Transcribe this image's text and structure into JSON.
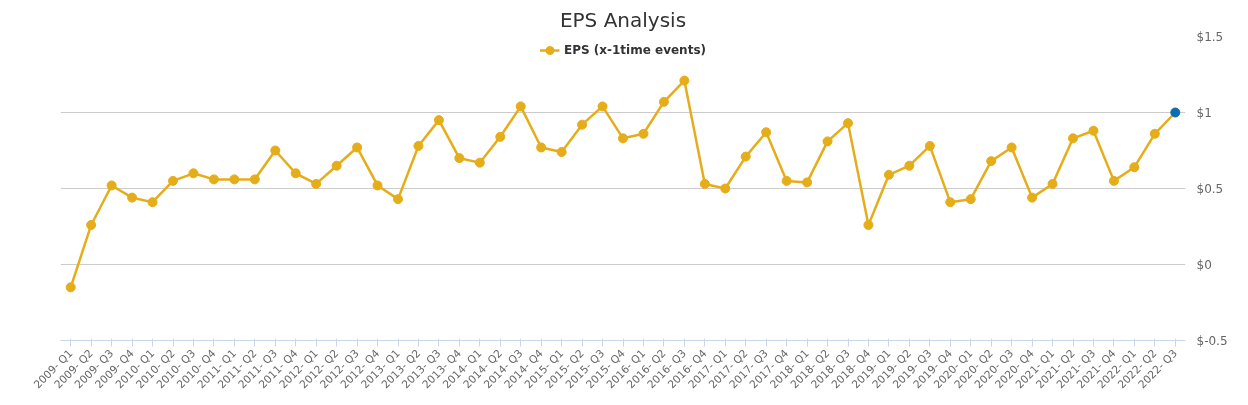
{
  "chart_data": {
    "type": "line",
    "title": "EPS Analysis",
    "categories": [
      "2009- Q1",
      "2009- Q2",
      "2009- Q3",
      "2009- Q4",
      "2010- Q1",
      "2010- Q2",
      "2010- Q3",
      "2010- Q4",
      "2011- Q1",
      "2011- Q2",
      "2011- Q3",
      "2011- Q4",
      "2012- Q1",
      "2012- Q2",
      "2012- Q3",
      "2012- Q4",
      "2013- Q1",
      "2013- Q2",
      "2013- Q3",
      "2013- Q4",
      "2014- Q1",
      "2014- Q2",
      "2014- Q3",
      "2014- Q4",
      "2015- Q1",
      "2015- Q2",
      "2015- Q3",
      "2015- Q4",
      "2016- Q1",
      "2016- Q2",
      "2016- Q3",
      "2016- Q4",
      "2017- Q1",
      "2017- Q2",
      "2017- Q3",
      "2017- Q4",
      "2018- Q1",
      "2018- Q2",
      "2018- Q3",
      "2018- Q4",
      "2019- Q1",
      "2019- Q2",
      "2019- Q3",
      "2019- Q4",
      "2020- Q1",
      "2020- Q2",
      "2020- Q3",
      "2020- Q4",
      "2021- Q1",
      "2021- Q2",
      "2021- Q3",
      "2021- Q4",
      "2022- Q1",
      "2022- Q2",
      "2022- Q3"
    ],
    "series": [
      {
        "name": "EPS (x-1time events)",
        "color": "#e6ad1a",
        "colors": [
          "#e6ad1a",
          "#e6ad1a",
          "#e6ad1a",
          "#e6ad1a",
          "#e6ad1a",
          "#e6ad1a",
          "#e6ad1a",
          "#e6ad1a",
          "#e6ad1a",
          "#e6ad1a",
          "#e6ad1a",
          "#e6ad1a",
          "#e6ad1a",
          "#e6ad1a",
          "#e6ad1a",
          "#e6ad1a",
          "#e6ad1a",
          "#e6ad1a",
          "#e6ad1a",
          "#e6ad1a",
          "#e6ad1a",
          "#e6ad1a",
          "#e6ad1a",
          "#e6ad1a",
          "#e6ad1a",
          "#e6ad1a",
          "#e6ad1a",
          "#e6ad1a",
          "#e6ad1a",
          "#e6ad1a",
          "#e6ad1a",
          "#e6ad1a",
          "#e6ad1a",
          "#e6ad1a",
          "#e6ad1a",
          "#e6ad1a",
          "#e6ad1a",
          "#e6ad1a",
          "#e6ad1a",
          "#e6ad1a",
          "#e6ad1a",
          "#e6ad1a",
          "#e6ad1a",
          "#e6ad1a",
          "#e6ad1a",
          "#e6ad1a",
          "#e6ad1a",
          "#e6ad1a",
          "#e6ad1a",
          "#e6ad1a",
          "#e6ad1a",
          "#e6ad1a",
          "#e6ad1a",
          "#e6ad1a",
          "#0a6eb4"
        ],
        "values": [
          -0.15,
          0.26,
          0.52,
          0.44,
          0.41,
          0.55,
          0.6,
          0.56,
          0.56,
          0.56,
          0.75,
          0.6,
          0.53,
          0.65,
          0.77,
          0.52,
          0.43,
          0.78,
          0.95,
          0.7,
          0.67,
          0.84,
          1.04,
          0.77,
          0.74,
          0.92,
          1.04,
          0.83,
          0.86,
          1.07,
          1.21,
          0.53,
          0.5,
          0.71,
          0.87,
          0.55,
          0.54,
          0.81,
          0.93,
          0.26,
          0.59,
          0.65,
          0.78,
          0.41,
          0.43,
          0.68,
          0.77,
          0.44,
          0.53,
          0.83,
          0.88,
          0.55,
          0.64,
          0.86,
          1.0
        ]
      }
    ],
    "ylim": [
      -0.5,
      1.5
    ],
    "yticks": [
      {
        "value": -0.5,
        "label": "$-0.5"
      },
      {
        "value": 0,
        "label": "$0"
      },
      {
        "value": 0.5,
        "label": "$0.5"
      },
      {
        "value": 1,
        "label": "$1"
      },
      {
        "value": 1.5,
        "label": "$1.5"
      }
    ],
    "grid": "y",
    "legend": "top",
    "marker": "circle",
    "line_style": "solid"
  }
}
